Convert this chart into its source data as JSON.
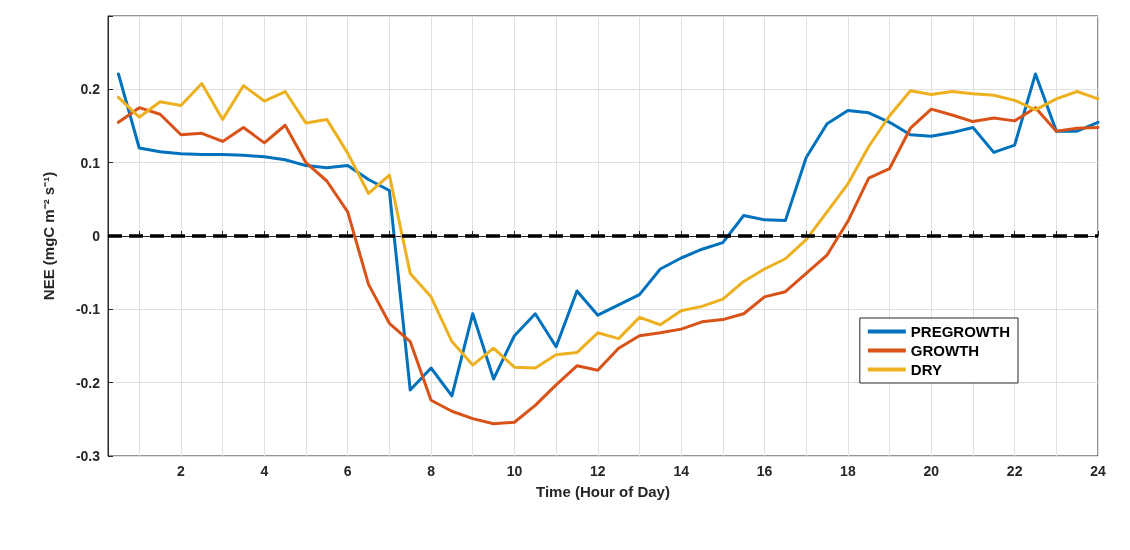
{
  "chart_data": {
    "type": "line",
    "xlabel": "Time (Hour of Day)",
    "ylabel": "NEE (mgC m⁻² s⁻¹)",
    "x": [
      0.5,
      1,
      1.5,
      2,
      2.5,
      3,
      3.5,
      4,
      4.5,
      5,
      5.5,
      6,
      6.5,
      7,
      7.5,
      8,
      8.5,
      9,
      9.5,
      10,
      10.5,
      11,
      11.5,
      12,
      12.5,
      13,
      13.5,
      14,
      14.5,
      15,
      15.5,
      16,
      16.5,
      17,
      17.5,
      18,
      18.5,
      19,
      19.5,
      20,
      20.5,
      21,
      21.5,
      22,
      22.5,
      23,
      23.5,
      24
    ],
    "series": [
      {
        "name": "PREGROWTH",
        "color": "#0072bd",
        "values": [
          0.221,
          0.12,
          0.115,
          0.112,
          0.111,
          0.111,
          0.11,
          0.108,
          0.104,
          0.096,
          0.093,
          0.096,
          0.077,
          0.062,
          -0.21,
          -0.18,
          -0.218,
          -0.106,
          -0.195,
          -0.136,
          -0.106,
          -0.151,
          -0.075,
          -0.108,
          -0.094,
          -0.08,
          -0.045,
          -0.03,
          -0.018,
          -0.009,
          0.028,
          0.022,
          0.021,
          0.107,
          0.153,
          0.171,
          0.168,
          0.155,
          0.138,
          0.136,
          0.141,
          0.148,
          0.114,
          0.124,
          0.221,
          0.143,
          0.143,
          0.155
        ]
      },
      {
        "name": "GROWTH",
        "color": "#d95319",
        "values": [
          0.155,
          0.175,
          0.166,
          0.138,
          0.14,
          0.129,
          0.148,
          0.127,
          0.151,
          0.1,
          0.075,
          0.033,
          -0.066,
          -0.119,
          -0.144,
          -0.224,
          -0.239,
          -0.249,
          -0.256,
          -0.254,
          -0.231,
          -0.203,
          -0.177,
          -0.183,
          -0.153,
          -0.136,
          -0.132,
          -0.127,
          -0.117,
          -0.114,
          -0.106,
          -0.083,
          -0.076,
          -0.051,
          -0.026,
          0.02,
          0.079,
          0.092,
          0.147,
          0.173,
          0.165,
          0.156,
          0.161,
          0.157,
          0.175,
          0.143,
          0.147,
          0.148
        ]
      },
      {
        "name": "DRY",
        "color": "#edb120",
        "values": [
          0.189,
          0.162,
          0.183,
          0.178,
          0.208,
          0.159,
          0.205,
          0.184,
          0.197,
          0.154,
          0.159,
          0.113,
          0.058,
          0.083,
          -0.051,
          -0.083,
          -0.144,
          -0.176,
          -0.153,
          -0.179,
          -0.18,
          -0.162,
          -0.159,
          -0.132,
          -0.14,
          -0.111,
          -0.121,
          -0.102,
          -0.096,
          -0.086,
          -0.062,
          -0.045,
          -0.031,
          -0.005,
          0.033,
          0.071,
          0.122,
          0.164,
          0.198,
          0.193,
          0.197,
          0.194,
          0.192,
          0.185,
          0.172,
          0.187,
          0.197,
          0.187
        ]
      }
    ],
    "xlim": [
      0.25,
      24
    ],
    "xticks": [
      {
        "value": 1,
        "label": null
      },
      2,
      {
        "value": 3,
        "label": null
      },
      4,
      {
        "value": 5,
        "label": null
      },
      6,
      {
        "value": 7,
        "label": null
      },
      8,
      {
        "value": 9,
        "label": null
      },
      10,
      {
        "value": 11,
        "label": null
      },
      12,
      {
        "value": 13,
        "label": null
      },
      14,
      {
        "value": 15,
        "label": null
      },
      16,
      {
        "value": 17,
        "label": null
      },
      18,
      {
        "value": 19,
        "label": null
      },
      20,
      {
        "value": 21,
        "label": null
      },
      22,
      {
        "value": 23,
        "label": null
      },
      24
    ],
    "ylim": [
      -0.3,
      0.3
    ],
    "yticks": [
      -0.3,
      -0.2,
      -0.1,
      0,
      0.1,
      0.2,
      {
        "value": 0.3,
        "label": null
      }
    ],
    "ref_lines": [
      {
        "axis": "y",
        "value": 0,
        "color": "#000000",
        "line_style": "dashed"
      }
    ],
    "grid": true,
    "legend": "right",
    "marker": "none",
    "line_style": "solid"
  }
}
